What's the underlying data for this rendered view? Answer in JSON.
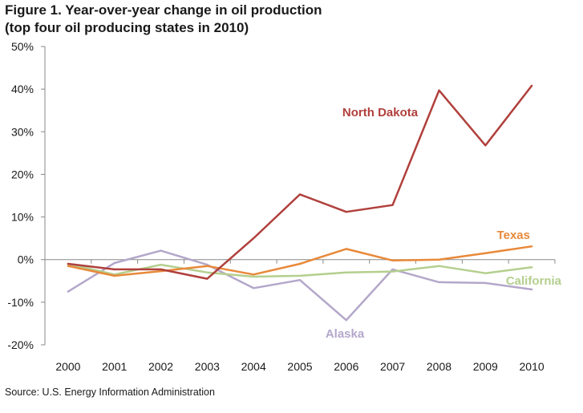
{
  "title_line1": "Figure 1.  Year-over-year change in oil production",
  "title_line2": "(top four oil producing states in 2010)",
  "source": "Source:  U.S. Energy Information Administration",
  "chart_data": {
    "type": "line",
    "x": [
      "2000",
      "2001",
      "2002",
      "2003",
      "2004",
      "2005",
      "2006",
      "2007",
      "2008",
      "2009",
      "2010"
    ],
    "ylim": [
      -20,
      50
    ],
    "yticks": [
      "50%",
      "40%",
      "30%",
      "20%",
      "10%",
      "0%",
      "-10%",
      "-20%"
    ],
    "ytick_values": [
      50,
      40,
      30,
      20,
      10,
      0,
      -10,
      -20
    ],
    "grid": false,
    "series": [
      {
        "name": "North Dakota",
        "color": "#b0403c",
        "values": [
          -1.0,
          -2.3,
          -2.3,
          -4.5,
          5.0,
          15.3,
          11.2,
          12.8,
          39.7,
          26.8,
          40.8
        ]
      },
      {
        "name": "Texas",
        "color": "#e8893a",
        "values": [
          -1.5,
          -3.8,
          -2.7,
          -1.5,
          -3.5,
          -1.0,
          2.5,
          -0.2,
          0.0,
          1.5,
          3.1
        ]
      },
      {
        "name": "California",
        "color": "#b4cf8e",
        "values": [
          -1.0,
          -3.5,
          -1.2,
          -3.0,
          -4.0,
          -3.8,
          -3.0,
          -2.8,
          -1.5,
          -3.2,
          -1.8
        ]
      },
      {
        "name": "Alaska",
        "color": "#b4a7ca",
        "values": [
          -7.5,
          -0.8,
          2.1,
          -1.2,
          -6.7,
          -4.8,
          -14.2,
          -2.3,
          -5.3,
          -5.5,
          -7.0
        ]
      }
    ]
  }
}
